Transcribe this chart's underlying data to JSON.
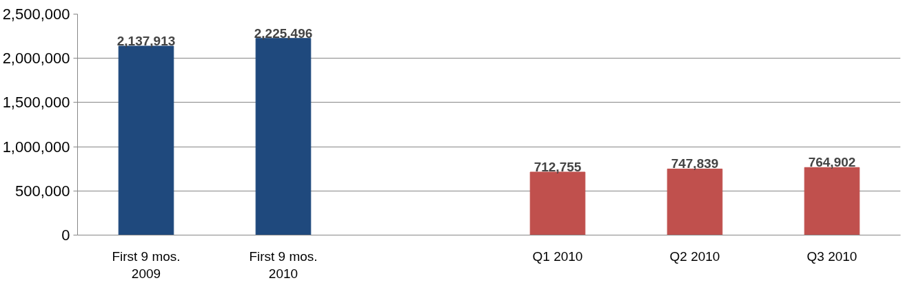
{
  "chart_data": {
    "type": "bar",
    "categories": [
      "First 9 mos. 2009",
      "First 9 mos. 2010",
      null,
      "Q1 2010",
      "Q2 2010",
      "Q3 2010"
    ],
    "values": [
      2137913,
      2225496,
      null,
      712755,
      747839,
      764902
    ],
    "colors": [
      "#1f497d",
      "#1f497d",
      null,
      "#c0504d",
      "#c0504d",
      "#c0504d"
    ],
    "ylim": [
      0,
      2500000
    ],
    "yticks": [
      0,
      {
        "value": 500000,
        "label": "500,000"
      },
      {
        "value": 1000000,
        "label": "1,000,000"
      },
      {
        "value": 1500000,
        "label": "1,500,000"
      },
      {
        "value": 2000000,
        "label": "2,000,000"
      },
      {
        "value": 2500000,
        "label": "2,500,000"
      }
    ],
    "value_labels": [
      "2,137,913",
      "2,225,496",
      null,
      "712,755",
      "747,839",
      "764,902"
    ],
    "grid": "y"
  }
}
